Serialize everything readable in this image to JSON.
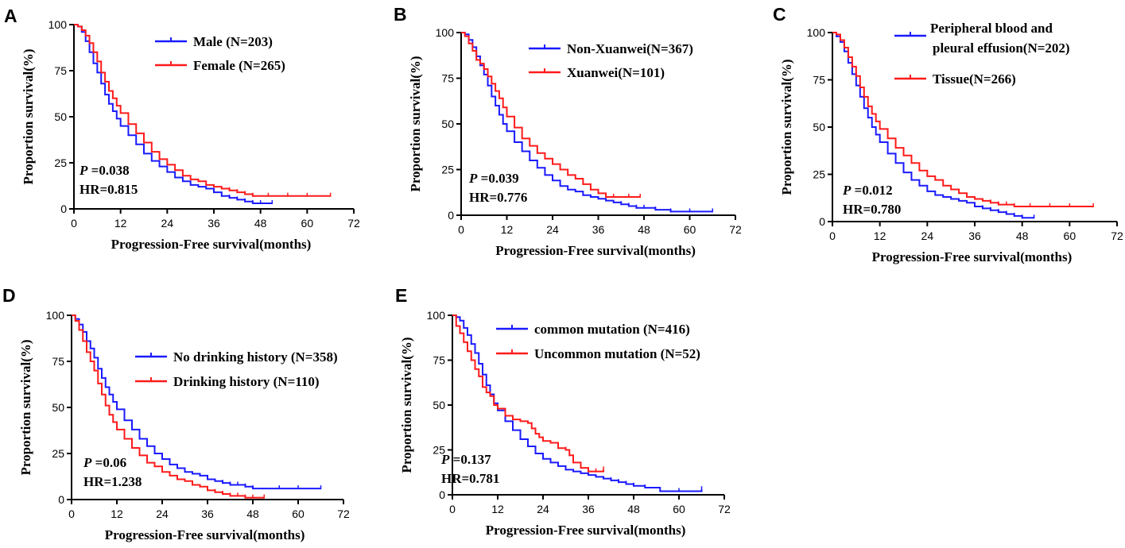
{
  "chart_data": [
    {
      "type": "line",
      "panel": "A",
      "xlabel": "Progression-Free survival(months)",
      "ylabel": "Proportion survival(%)",
      "xlim": [
        0,
        72
      ],
      "ylim": [
        0,
        100
      ],
      "xticks": [
        0,
        12,
        24,
        36,
        48,
        60,
        72
      ],
      "yticks": [
        0,
        25,
        50,
        75,
        100
      ],
      "stats": {
        "p_label": "P",
        "p_value": "=0.038",
        "hr": "HR=0.815"
      },
      "legend_position": "top-right",
      "series": [
        {
          "name": "Male (N=203)",
          "color": "#1a1aff",
          "x": [
            0,
            1,
            2,
            3,
            4,
            5,
            6,
            7,
            8,
            9,
            10,
            11,
            12,
            14,
            16,
            18,
            20,
            22,
            24,
            26,
            28,
            30,
            32,
            34,
            36,
            38,
            40,
            42,
            44,
            46,
            48,
            51
          ],
          "y": [
            100,
            99,
            96,
            91,
            85,
            79,
            74,
            68,
            62,
            57,
            53,
            49,
            45,
            40,
            35,
            30,
            26,
            23,
            20,
            17,
            15,
            13,
            12,
            11,
            9,
            7,
            6,
            5,
            4,
            3,
            3,
            3
          ]
        },
        {
          "name": "Female (N=265)",
          "color": "#ff1a1a",
          "x": [
            0,
            1,
            2,
            3,
            4,
            5,
            6,
            7,
            8,
            9,
            10,
            11,
            12,
            14,
            16,
            18,
            20,
            22,
            24,
            26,
            28,
            30,
            32,
            34,
            36,
            38,
            40,
            42,
            44,
            46,
            50,
            55,
            60,
            66
          ],
          "y": [
            100,
            99,
            97,
            94,
            90,
            85,
            80,
            74,
            69,
            64,
            60,
            56,
            52,
            46,
            41,
            36,
            31,
            27,
            24,
            21,
            18,
            16,
            15,
            13,
            12,
            11,
            10,
            9,
            8,
            7,
            7,
            7,
            7,
            7
          ]
        }
      ]
    },
    {
      "type": "line",
      "panel": "B",
      "xlabel": "Progression-Free survival(months)",
      "ylabel": "Proportion survival(%)",
      "xlim": [
        0,
        72
      ],
      "ylim": [
        0,
        100
      ],
      "xticks": [
        0,
        12,
        24,
        36,
        48,
        60,
        72
      ],
      "yticks": [
        0,
        25,
        50,
        75,
        100
      ],
      "stats": {
        "p_label": "P",
        "p_value": "=0.039",
        "hr": "HR=0.776"
      },
      "legend_position": "top-right",
      "series": [
        {
          "name": "Non-Xuanwei(N=367)",
          "color": "#1a1aff",
          "x": [
            0,
            1,
            2,
            3,
            4,
            5,
            6,
            7,
            8,
            9,
            10,
            11,
            12,
            14,
            16,
            18,
            20,
            22,
            24,
            26,
            28,
            30,
            32,
            34,
            36,
            38,
            40,
            42,
            44,
            46,
            48,
            51,
            55,
            60,
            66
          ],
          "y": [
            100,
            99,
            96,
            92,
            87,
            82,
            77,
            71,
            65,
            60,
            55,
            50,
            46,
            40,
            35,
            30,
            26,
            22,
            19,
            16,
            14,
            13,
            11,
            10,
            9,
            8,
            7,
            6,
            5,
            4,
            4,
            3,
            2,
            2,
            2
          ]
        },
        {
          "name": "Xuanwei(N=101)",
          "color": "#ff1a1a",
          "x": [
            0,
            1,
            2,
            3,
            4,
            5,
            6,
            7,
            8,
            9,
            10,
            11,
            12,
            14,
            16,
            18,
            20,
            22,
            24,
            26,
            28,
            30,
            32,
            34,
            36,
            38,
            40,
            44,
            47
          ],
          "y": [
            100,
            98,
            94,
            90,
            85,
            83,
            80,
            76,
            72,
            68,
            64,
            59,
            54,
            48,
            42,
            38,
            34,
            31,
            28,
            25,
            22,
            20,
            17,
            14,
            12,
            10,
            10,
            10,
            10
          ]
        }
      ]
    },
    {
      "type": "line",
      "panel": "C",
      "xlabel": "Progression-Free survival(months)",
      "ylabel": "Proportion survival(%)",
      "xlim": [
        0,
        72
      ],
      "ylim": [
        0,
        100
      ],
      "xticks": [
        0,
        12,
        24,
        36,
        48,
        60,
        72
      ],
      "yticks": [
        0,
        25,
        50,
        75,
        100
      ],
      "stats": {
        "p_label": "P",
        "p_value": "=0.012",
        "hr": "HR=0.780"
      },
      "legend_position": "top-right",
      "series": [
        {
          "name_line1": "Peripheral blood and",
          "name_line2": "pleural effusion(N=202)",
          "color": "#1a1aff",
          "x": [
            0,
            1,
            2,
            3,
            4,
            5,
            6,
            7,
            8,
            9,
            10,
            11,
            12,
            14,
            16,
            18,
            20,
            22,
            24,
            26,
            28,
            30,
            32,
            34,
            36,
            38,
            40,
            42,
            44,
            46,
            48,
            51
          ],
          "y": [
            100,
            98,
            95,
            90,
            84,
            78,
            72,
            66,
            60,
            55,
            50,
            46,
            42,
            36,
            31,
            26,
            22,
            19,
            16,
            14,
            13,
            12,
            11,
            10,
            8,
            7,
            6,
            5,
            4,
            3,
            2,
            2
          ]
        },
        {
          "name": "Tissue(N=266)",
          "color": "#ff1a1a",
          "x": [
            0,
            1,
            2,
            3,
            4,
            5,
            6,
            7,
            8,
            9,
            10,
            11,
            12,
            14,
            16,
            18,
            20,
            22,
            24,
            26,
            28,
            30,
            32,
            34,
            36,
            38,
            40,
            42,
            44,
            46,
            50,
            55,
            60,
            66
          ],
          "y": [
            100,
            99,
            96,
            92,
            87,
            82,
            77,
            71,
            66,
            61,
            57,
            53,
            49,
            44,
            39,
            35,
            31,
            27,
            24,
            22,
            19,
            17,
            15,
            13,
            12,
            11,
            10,
            9,
            9,
            8,
            8,
            8,
            8,
            8
          ]
        }
      ]
    },
    {
      "type": "line",
      "panel": "D",
      "xlabel": "Progression-Free survival(months)",
      "ylabel": "Proportion survival(%)",
      "xlim": [
        0,
        72
      ],
      "ylim": [
        0,
        100
      ],
      "xticks": [
        0,
        12,
        24,
        36,
        48,
        60,
        72
      ],
      "yticks": [
        0,
        25,
        50,
        75,
        100
      ],
      "stats": {
        "p_label": "P",
        "p_value": "=0.06",
        "hr": "HR=1.238"
      },
      "legend_position": "middle-right",
      "series": [
        {
          "name": "No drinking history (N=358)",
          "color": "#1a1aff",
          "x": [
            0,
            1,
            2,
            3,
            4,
            5,
            6,
            7,
            8,
            9,
            10,
            11,
            12,
            14,
            16,
            18,
            20,
            22,
            24,
            26,
            28,
            30,
            32,
            34,
            36,
            38,
            40,
            42,
            44,
            46,
            48,
            55,
            60,
            66
          ],
          "y": [
            100,
            98,
            95,
            91,
            86,
            82,
            77,
            71,
            66,
            61,
            57,
            53,
            49,
            43,
            38,
            33,
            29,
            25,
            22,
            19,
            17,
            15,
            14,
            13,
            11,
            10,
            9,
            8,
            8,
            7,
            6,
            6,
            6,
            6
          ]
        },
        {
          "name": "Drinking history (N=110)",
          "color": "#ff1a1a",
          "x": [
            0,
            1,
            2,
            3,
            4,
            5,
            6,
            7,
            8,
            9,
            10,
            11,
            12,
            14,
            16,
            18,
            20,
            22,
            24,
            26,
            28,
            30,
            32,
            34,
            36,
            38,
            40,
            42,
            44,
            46,
            48,
            51
          ],
          "y": [
            100,
            97,
            92,
            86,
            80,
            75,
            70,
            63,
            57,
            51,
            46,
            42,
            38,
            33,
            28,
            24,
            20,
            18,
            15,
            13,
            11,
            10,
            8,
            7,
            5,
            4,
            3,
            2,
            2,
            1,
            1,
            1
          ]
        }
      ]
    },
    {
      "type": "line",
      "panel": "E",
      "xlabel": "Progression-Free survival(months)",
      "ylabel": "Proportion survival(%)",
      "xlim": [
        0,
        72
      ],
      "ylim": [
        0,
        100
      ],
      "xticks": [
        0,
        12,
        24,
        36,
        48,
        60,
        72
      ],
      "yticks": [
        0,
        25,
        50,
        75,
        100
      ],
      "stats": {
        "p_label": "P",
        "p_value": "=0.137",
        "hr": "HR=0.781"
      },
      "legend_position": "top-right",
      "series": [
        {
          "name": "common mutation (N=416)",
          "color": "#1a1aff",
          "x": [
            0,
            1,
            2,
            3,
            4,
            5,
            6,
            7,
            8,
            9,
            10,
            11,
            12,
            14,
            16,
            18,
            20,
            22,
            24,
            26,
            28,
            30,
            32,
            34,
            36,
            38,
            40,
            42,
            44,
            46,
            48,
            51,
            55,
            60,
            66
          ],
          "y": [
            100,
            99,
            97,
            93,
            89,
            84,
            79,
            73,
            67,
            61,
            56,
            51,
            47,
            41,
            36,
            31,
            27,
            23,
            20,
            18,
            16,
            14,
            13,
            12,
            11,
            10,
            9,
            8,
            7,
            6,
            5,
            4,
            2,
            2,
            3
          ]
        },
        {
          "name": "Uncommon mutation (N=52)",
          "color": "#ff1a1a",
          "x": [
            0,
            1,
            2,
            3,
            4,
            5,
            6,
            7,
            8,
            9,
            10,
            11,
            12,
            14,
            16,
            18,
            20,
            21,
            22,
            23,
            24,
            26,
            28,
            30,
            31,
            32,
            34,
            36,
            38,
            40
          ],
          "y": [
            100,
            94,
            90,
            85,
            80,
            75,
            70,
            66,
            60,
            57,
            55,
            50,
            48,
            44,
            42,
            41,
            40,
            37,
            34,
            32,
            30,
            29,
            26,
            25,
            22,
            18,
            15,
            13,
            13,
            14
          ]
        }
      ]
    }
  ]
}
